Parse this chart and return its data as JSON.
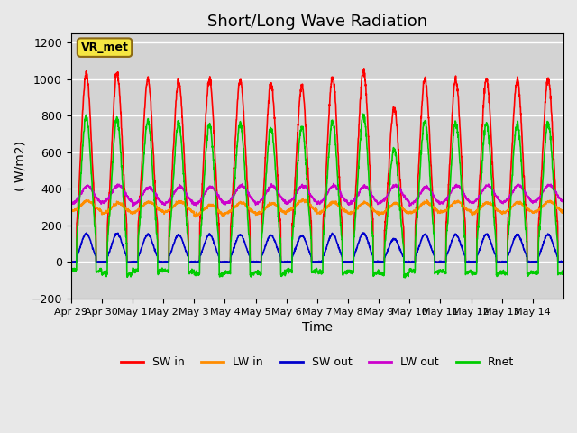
{
  "title": "Short/Long Wave Radiation",
  "xlabel": "Time",
  "ylabel": "( W/m2)",
  "ylim": [
    -200,
    1250
  ],
  "yticks": [
    -200,
    0,
    200,
    400,
    600,
    800,
    1000,
    1200
  ],
  "n_days": 16,
  "day_labels": [
    "Apr 29",
    "Apr 30",
    "May 1",
    "May 2",
    "May 3",
    "May 4",
    "May 5",
    "May 6",
    "May 7",
    "May 8",
    "May 9",
    "May 10",
    "May 11",
    "May 12",
    "May 13",
    "May 14"
  ],
  "series": {
    "SW_in": {
      "color": "#ff0000",
      "label": "SW in",
      "lw": 1.2
    },
    "LW_in": {
      "color": "#ff8c00",
      "label": "LW in",
      "lw": 1.2
    },
    "SW_out": {
      "color": "#0000cc",
      "label": "SW out",
      "lw": 1.2
    },
    "LW_out": {
      "color": "#cc00cc",
      "label": "LW out",
      "lw": 1.2
    },
    "Rnet": {
      "color": "#00cc00",
      "label": "Rnet",
      "lw": 1.2
    }
  },
  "legend_label": "VR_met",
  "background_color": "#e8e8e8",
  "plot_bg_color": "#d3d3d3",
  "grid_color": "#ffffff",
  "title_fontsize": 13,
  "axis_fontsize": 10,
  "tick_fontsize": 9
}
